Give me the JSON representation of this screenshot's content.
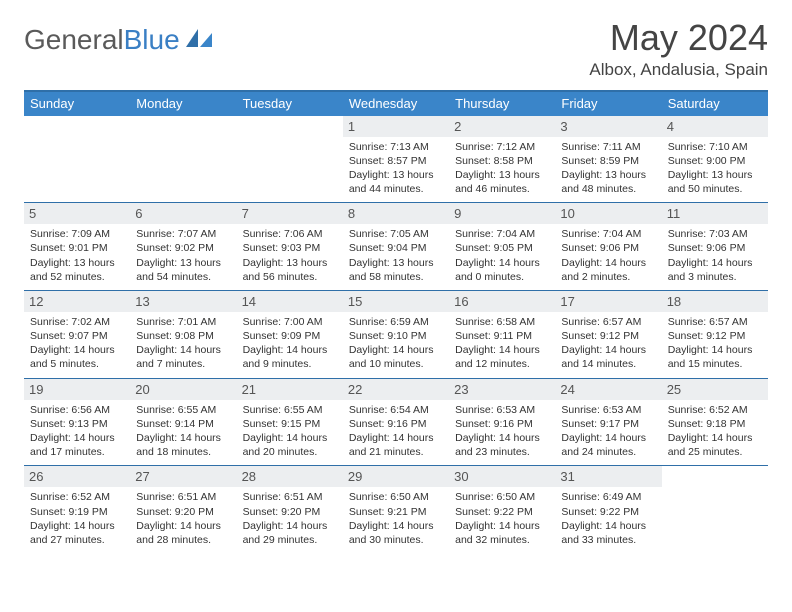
{
  "logo": {
    "text1": "General",
    "text2": "Blue"
  },
  "title": "May 2024",
  "location": "Albox, Andalusia, Spain",
  "colors": {
    "header_bg": "#3a85c9",
    "rule": "#2f6fa8",
    "daynum_bg": "#eceef0",
    "text": "#333333",
    "title": "#444444"
  },
  "dow": [
    "Sunday",
    "Monday",
    "Tuesday",
    "Wednesday",
    "Thursday",
    "Friday",
    "Saturday"
  ],
  "weeks": [
    [
      {
        "n": "",
        "lines": []
      },
      {
        "n": "",
        "lines": []
      },
      {
        "n": "",
        "lines": []
      },
      {
        "n": "1",
        "lines": [
          "Sunrise: 7:13 AM",
          "Sunset: 8:57 PM",
          "Daylight: 13 hours",
          "and 44 minutes."
        ]
      },
      {
        "n": "2",
        "lines": [
          "Sunrise: 7:12 AM",
          "Sunset: 8:58 PM",
          "Daylight: 13 hours",
          "and 46 minutes."
        ]
      },
      {
        "n": "3",
        "lines": [
          "Sunrise: 7:11 AM",
          "Sunset: 8:59 PM",
          "Daylight: 13 hours",
          "and 48 minutes."
        ]
      },
      {
        "n": "4",
        "lines": [
          "Sunrise: 7:10 AM",
          "Sunset: 9:00 PM",
          "Daylight: 13 hours",
          "and 50 minutes."
        ]
      }
    ],
    [
      {
        "n": "5",
        "lines": [
          "Sunrise: 7:09 AM",
          "Sunset: 9:01 PM",
          "Daylight: 13 hours",
          "and 52 minutes."
        ]
      },
      {
        "n": "6",
        "lines": [
          "Sunrise: 7:07 AM",
          "Sunset: 9:02 PM",
          "Daylight: 13 hours",
          "and 54 minutes."
        ]
      },
      {
        "n": "7",
        "lines": [
          "Sunrise: 7:06 AM",
          "Sunset: 9:03 PM",
          "Daylight: 13 hours",
          "and 56 minutes."
        ]
      },
      {
        "n": "8",
        "lines": [
          "Sunrise: 7:05 AM",
          "Sunset: 9:04 PM",
          "Daylight: 13 hours",
          "and 58 minutes."
        ]
      },
      {
        "n": "9",
        "lines": [
          "Sunrise: 7:04 AM",
          "Sunset: 9:05 PM",
          "Daylight: 14 hours",
          "and 0 minutes."
        ]
      },
      {
        "n": "10",
        "lines": [
          "Sunrise: 7:04 AM",
          "Sunset: 9:06 PM",
          "Daylight: 14 hours",
          "and 2 minutes."
        ]
      },
      {
        "n": "11",
        "lines": [
          "Sunrise: 7:03 AM",
          "Sunset: 9:06 PM",
          "Daylight: 14 hours",
          "and 3 minutes."
        ]
      }
    ],
    [
      {
        "n": "12",
        "lines": [
          "Sunrise: 7:02 AM",
          "Sunset: 9:07 PM",
          "Daylight: 14 hours",
          "and 5 minutes."
        ]
      },
      {
        "n": "13",
        "lines": [
          "Sunrise: 7:01 AM",
          "Sunset: 9:08 PM",
          "Daylight: 14 hours",
          "and 7 minutes."
        ]
      },
      {
        "n": "14",
        "lines": [
          "Sunrise: 7:00 AM",
          "Sunset: 9:09 PM",
          "Daylight: 14 hours",
          "and 9 minutes."
        ]
      },
      {
        "n": "15",
        "lines": [
          "Sunrise: 6:59 AM",
          "Sunset: 9:10 PM",
          "Daylight: 14 hours",
          "and 10 minutes."
        ]
      },
      {
        "n": "16",
        "lines": [
          "Sunrise: 6:58 AM",
          "Sunset: 9:11 PM",
          "Daylight: 14 hours",
          "and 12 minutes."
        ]
      },
      {
        "n": "17",
        "lines": [
          "Sunrise: 6:57 AM",
          "Sunset: 9:12 PM",
          "Daylight: 14 hours",
          "and 14 minutes."
        ]
      },
      {
        "n": "18",
        "lines": [
          "Sunrise: 6:57 AM",
          "Sunset: 9:12 PM",
          "Daylight: 14 hours",
          "and 15 minutes."
        ]
      }
    ],
    [
      {
        "n": "19",
        "lines": [
          "Sunrise: 6:56 AM",
          "Sunset: 9:13 PM",
          "Daylight: 14 hours",
          "and 17 minutes."
        ]
      },
      {
        "n": "20",
        "lines": [
          "Sunrise: 6:55 AM",
          "Sunset: 9:14 PM",
          "Daylight: 14 hours",
          "and 18 minutes."
        ]
      },
      {
        "n": "21",
        "lines": [
          "Sunrise: 6:55 AM",
          "Sunset: 9:15 PM",
          "Daylight: 14 hours",
          "and 20 minutes."
        ]
      },
      {
        "n": "22",
        "lines": [
          "Sunrise: 6:54 AM",
          "Sunset: 9:16 PM",
          "Daylight: 14 hours",
          "and 21 minutes."
        ]
      },
      {
        "n": "23",
        "lines": [
          "Sunrise: 6:53 AM",
          "Sunset: 9:16 PM",
          "Daylight: 14 hours",
          "and 23 minutes."
        ]
      },
      {
        "n": "24",
        "lines": [
          "Sunrise: 6:53 AM",
          "Sunset: 9:17 PM",
          "Daylight: 14 hours",
          "and 24 minutes."
        ]
      },
      {
        "n": "25",
        "lines": [
          "Sunrise: 6:52 AM",
          "Sunset: 9:18 PM",
          "Daylight: 14 hours",
          "and 25 minutes."
        ]
      }
    ],
    [
      {
        "n": "26",
        "lines": [
          "Sunrise: 6:52 AM",
          "Sunset: 9:19 PM",
          "Daylight: 14 hours",
          "and 27 minutes."
        ]
      },
      {
        "n": "27",
        "lines": [
          "Sunrise: 6:51 AM",
          "Sunset: 9:20 PM",
          "Daylight: 14 hours",
          "and 28 minutes."
        ]
      },
      {
        "n": "28",
        "lines": [
          "Sunrise: 6:51 AM",
          "Sunset: 9:20 PM",
          "Daylight: 14 hours",
          "and 29 minutes."
        ]
      },
      {
        "n": "29",
        "lines": [
          "Sunrise: 6:50 AM",
          "Sunset: 9:21 PM",
          "Daylight: 14 hours",
          "and 30 minutes."
        ]
      },
      {
        "n": "30",
        "lines": [
          "Sunrise: 6:50 AM",
          "Sunset: 9:22 PM",
          "Daylight: 14 hours",
          "and 32 minutes."
        ]
      },
      {
        "n": "31",
        "lines": [
          "Sunrise: 6:49 AM",
          "Sunset: 9:22 PM",
          "Daylight: 14 hours",
          "and 33 minutes."
        ]
      },
      {
        "n": "",
        "lines": []
      }
    ]
  ]
}
